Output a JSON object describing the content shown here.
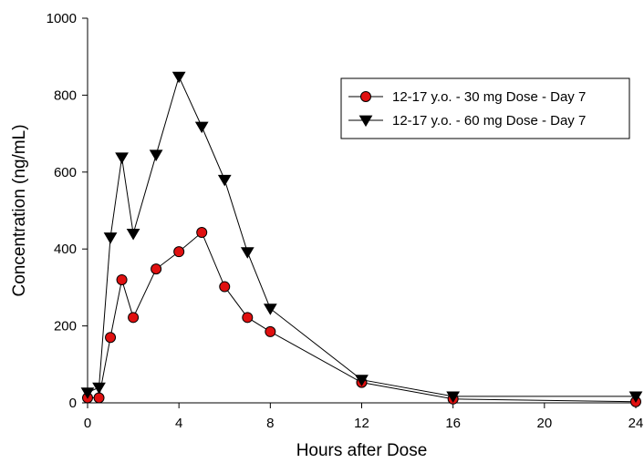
{
  "chart_data": {
    "type": "line",
    "xlabel": "Hours after Dose",
    "ylabel": "Concentration (ng/mL)",
    "xlim": [
      0,
      24
    ],
    "ylim": [
      0,
      1000
    ],
    "xticks": [
      0,
      4,
      8,
      12,
      16,
      20,
      24
    ],
    "yticks": [
      0,
      200,
      400,
      600,
      800,
      1000
    ],
    "grid": false,
    "legend_position": "top-right",
    "series": [
      {
        "name": "12-17 y.o. - 30 mg Dose - Day 7",
        "marker": "circle",
        "color": "#e01010",
        "x": [
          0,
          0.5,
          1,
          1.5,
          2,
          3,
          4,
          5,
          6,
          7,
          8,
          12,
          16,
          24
        ],
        "y": [
          13,
          13,
          170,
          320,
          222,
          348,
          393,
          443,
          302,
          222,
          185,
          53,
          10,
          3
        ]
      },
      {
        "name": "12-17 y.o. - 60 mg Dose - Day 7",
        "marker": "triangle-down",
        "color": "#000000",
        "x": [
          0,
          0.5,
          1,
          1.5,
          2,
          3,
          4,
          5,
          6,
          7,
          8,
          12,
          16,
          24
        ],
        "y": [
          27,
          40,
          430,
          638,
          440,
          645,
          848,
          718,
          580,
          392,
          245,
          60,
          17,
          17
        ]
      }
    ]
  }
}
